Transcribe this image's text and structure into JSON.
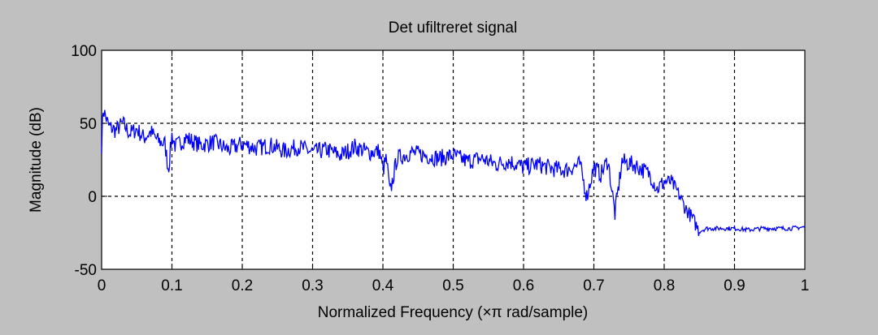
{
  "window": {
    "background": "#c0c0c0"
  },
  "chart_data": {
    "type": "line",
    "title": "Det ufiltreret signal",
    "xlabel": "Normalized Frequency  (×π rad/sample)",
    "ylabel": "Magnitude (dB)",
    "xlim": [
      0,
      1
    ],
    "ylim": [
      -50,
      100
    ],
    "x_ticks": [
      "0",
      "0.1",
      "0.2",
      "0.3",
      "0.4",
      "0.5",
      "0.6",
      "0.7",
      "0.8",
      "0.9",
      "1"
    ],
    "y_ticks": [
      "-50",
      "0",
      "50",
      "100"
    ],
    "grid": true,
    "grid_style": "dashed",
    "line_color": "#0000ff",
    "plot_background": "#ffffff",
    "series": [
      {
        "x": [
          0.0,
          0.002,
          0.01,
          0.02,
          0.03,
          0.04,
          0.05,
          0.06,
          0.07,
          0.08,
          0.09,
          0.095,
          0.1,
          0.105,
          0.12,
          0.14,
          0.16,
          0.18,
          0.2,
          0.22,
          0.24,
          0.26,
          0.28,
          0.3,
          0.32,
          0.34,
          0.36,
          0.38,
          0.395,
          0.4,
          0.405,
          0.41,
          0.42,
          0.44,
          0.46,
          0.48,
          0.5,
          0.52,
          0.54,
          0.56,
          0.58,
          0.6,
          0.62,
          0.64,
          0.66,
          0.68,
          0.69,
          0.7,
          0.71,
          0.72,
          0.73,
          0.74,
          0.76,
          0.78,
          0.79,
          0.8,
          0.81,
          0.82,
          0.83,
          0.84,
          0.85,
          0.86,
          0.88,
          0.9,
          0.92,
          0.94,
          0.96,
          0.98,
          1.0
        ],
        "y": [
          35,
          60,
          48,
          45,
          50,
          43,
          46,
          40,
          44,
          38,
          36,
          18,
          42,
          34,
          40,
          35,
          37,
          32,
          36,
          33,
          35,
          31,
          34,
          30,
          32,
          28,
          34,
          30,
          31,
          18,
          26,
          2,
          26,
          30,
          28,
          26,
          28,
          24,
          26,
          22,
          24,
          20,
          22,
          19,
          18,
          22,
          0,
          20,
          15,
          25,
          -12,
          24,
          21,
          15,
          5,
          10,
          10,
          2,
          -8,
          -15,
          -24,
          -22,
          -22,
          -22,
          -23,
          -22,
          -22,
          -22,
          -21
        ]
      }
    ]
  }
}
